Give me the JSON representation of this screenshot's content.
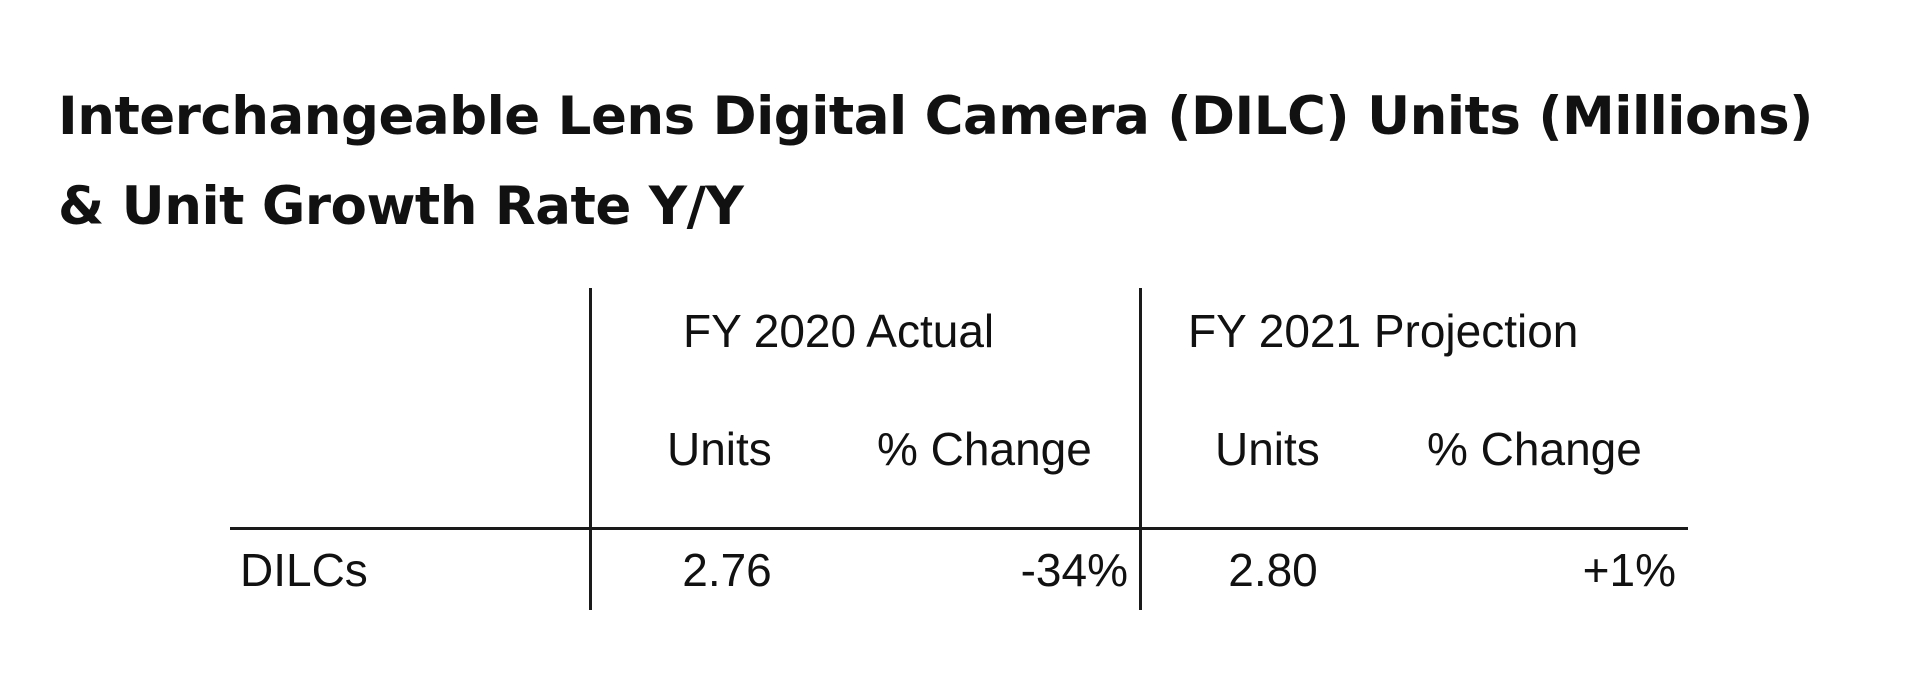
{
  "chart_data": {
    "type": "table",
    "title": "Interchangeable Lens Digital Camera (DILC) Units (Millions)",
    "subtitle": "& Unit Growth Rate Y/Y",
    "group_headers": [
      "FY 2020 Actual",
      "FY 2021 Projection"
    ],
    "column_headers": [
      "Units",
      "% Change",
      "Units",
      "% Change"
    ],
    "rows": [
      {
        "label": "DILCs",
        "values": [
          "2.76",
          "-34%",
          "2.80",
          "+1%"
        ]
      }
    ]
  }
}
